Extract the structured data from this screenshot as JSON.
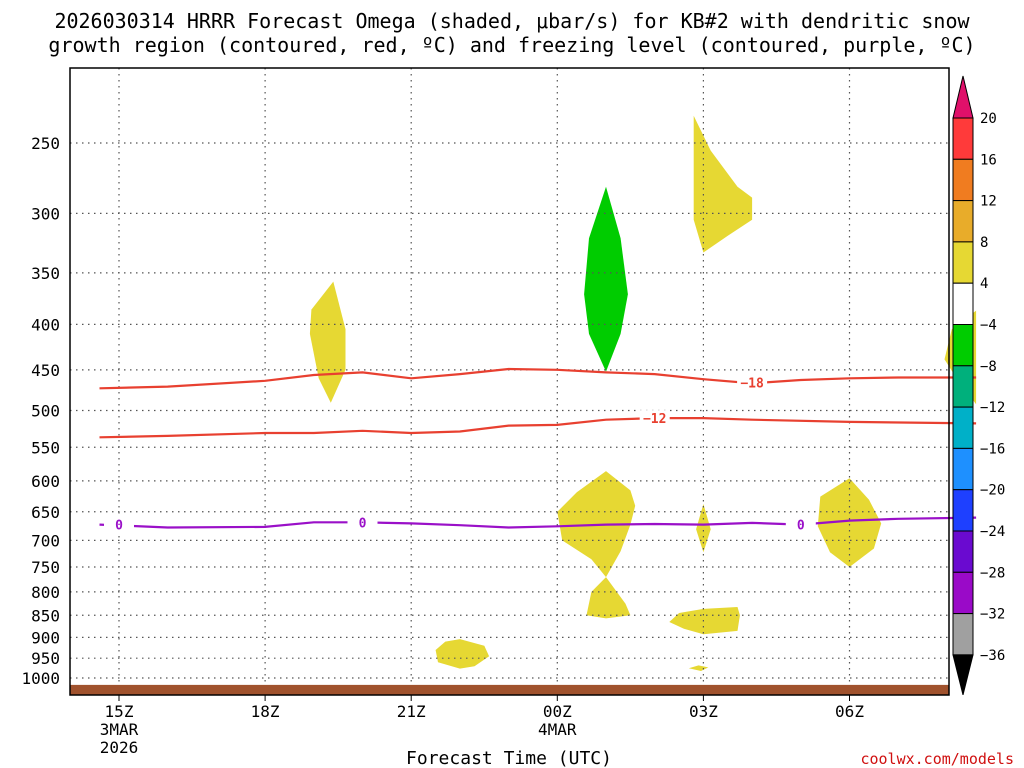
{
  "chart_data": {
    "type": "contour",
    "title_line1": "2026030314 HRRR Forecast Omega (shaded, μbar/s) for KB#2 with dendritic snow",
    "title_line2": "growth region (contoured, red, ºC) and freezing level (contoured, purple, ºC)",
    "xlabel": "Forecast Time (UTC)",
    "credit": "coolwx.com/models",
    "x_range": [
      14.6,
      32.6
    ],
    "x_ticks": [
      {
        "x": 15,
        "label": "15Z",
        "sub1": "3MAR",
        "sub2": "2026"
      },
      {
        "x": 18,
        "label": "18Z",
        "sub1": "",
        "sub2": ""
      },
      {
        "x": 21,
        "label": "21Z",
        "sub1": "",
        "sub2": ""
      },
      {
        "x": 24,
        "label": "00Z",
        "sub1": "4MAR",
        "sub2": ""
      },
      {
        "x": 27,
        "label": "03Z",
        "sub1": "",
        "sub2": ""
      },
      {
        "x": 30,
        "label": "06Z",
        "sub1": "",
        "sub2": ""
      }
    ],
    "y_ticks": [
      250,
      300,
      350,
      400,
      450,
      500,
      550,
      600,
      650,
      700,
      750,
      800,
      850,
      900,
      950,
      1000
    ],
    "y_range": [
      200,
      1030
    ],
    "y_scale": "log",
    "grid": "dotted",
    "colorbar": {
      "levels": [
        "20",
        "16",
        "12",
        "8",
        "4",
        "−4",
        "−8",
        "−12",
        "−16",
        "−20",
        "−24",
        "−28",
        "−32",
        "−36"
      ],
      "colors": [
        "#ff3a3a",
        "#f07c20",
        "#e8ac2a",
        "#e6d833",
        "#ffffff",
        "#00cc00",
        "#00b07c",
        "#00b0c8",
        "#1e90ff",
        "#1e40ff",
        "#6a0ad0",
        "#9a0ac8",
        "#a0a0a0"
      ],
      "top_arrow_color": "#e0106a",
      "bottom_arrow_color": "#000000"
    },
    "contours": [
      {
        "name": "−18",
        "label": "−18",
        "color": "#e84030",
        "points": [
          [
            14.6,
            472
          ],
          [
            16,
            470
          ],
          [
            18,
            463
          ],
          [
            19,
            456
          ],
          [
            20,
            453
          ],
          [
            21,
            460
          ],
          [
            22,
            455
          ],
          [
            23,
            449
          ],
          [
            24,
            450
          ],
          [
            25,
            453
          ],
          [
            26,
            455
          ],
          [
            27,
            461
          ],
          [
            28,
            466
          ],
          [
            29,
            462
          ],
          [
            30,
            460
          ],
          [
            31,
            459
          ],
          [
            32.6,
            459
          ]
        ],
        "label_at": [
          28.0,
          465
        ]
      },
      {
        "name": "−12",
        "label": "−12",
        "color": "#e84030",
        "points": [
          [
            14.6,
            536
          ],
          [
            16,
            534
          ],
          [
            18,
            530
          ],
          [
            19,
            530
          ],
          [
            20,
            527
          ],
          [
            21,
            530
          ],
          [
            22,
            528
          ],
          [
            23,
            520
          ],
          [
            24,
            519
          ],
          [
            25,
            512
          ],
          [
            26,
            510
          ],
          [
            27,
            510
          ],
          [
            28,
            512
          ],
          [
            30,
            515
          ],
          [
            32.6,
            517
          ]
        ],
        "label_at": [
          26.0,
          510
        ]
      },
      {
        "name": "0",
        "label": "0",
        "color": "#9a10c8",
        "points": [
          [
            14.6,
            672
          ],
          [
            16,
            677
          ],
          [
            18,
            676
          ],
          [
            19,
            668
          ],
          [
            20,
            668
          ],
          [
            21,
            670
          ],
          [
            22,
            673
          ],
          [
            23,
            677
          ],
          [
            24,
            675
          ],
          [
            25,
            672
          ],
          [
            26,
            671
          ],
          [
            27,
            672
          ],
          [
            28,
            669
          ],
          [
            29,
            672
          ],
          [
            30,
            665
          ],
          [
            31,
            662
          ],
          [
            32.6,
            660
          ]
        ],
        "label_at": [
          [
            15.0,
            672
          ],
          [
            20.0,
            668
          ],
          [
            29.0,
            672
          ]
        ]
      }
    ],
    "omega_areas": [
      {
        "value_range": "4 to 8",
        "color": "#e6d833",
        "points": [
          [
            19.4,
            358
          ],
          [
            19.65,
            405
          ],
          [
            19.65,
            450
          ],
          [
            19.35,
            490
          ],
          [
            19.1,
            460
          ],
          [
            18.92,
            410
          ],
          [
            18.95,
            385
          ]
        ]
      },
      {
        "value_range": "4 to 8",
        "color": "#e6d833",
        "points": [
          [
            26.8,
            233
          ],
          [
            27.15,
            255
          ],
          [
            27.7,
            280
          ],
          [
            28.0,
            288
          ],
          [
            28.0,
            305
          ],
          [
            27.5,
            318
          ],
          [
            27.0,
            332
          ],
          [
            26.8,
            305
          ]
        ]
      },
      {
        "value_range": "4 to 8",
        "color": "#e6d833",
        "points": [
          [
            32.6,
            386
          ],
          [
            32.6,
            492
          ],
          [
            32.2,
            460
          ],
          [
            31.95,
            438
          ],
          [
            32.1,
            405
          ]
        ]
      },
      {
        "value_range": "4 to 8",
        "color": "#e6d833",
        "points": [
          [
            25.0,
            585
          ],
          [
            25.5,
            615
          ],
          [
            25.6,
            640
          ],
          [
            25.5,
            672
          ],
          [
            25.3,
            720
          ],
          [
            25.0,
            770
          ],
          [
            24.7,
            735
          ],
          [
            24.1,
            700
          ],
          [
            24.0,
            650
          ],
          [
            24.4,
            618
          ]
        ]
      },
      {
        "value_range": "4 to 8",
        "color": "#e6d833",
        "points": [
          [
            25.0,
            770
          ],
          [
            25.4,
            825
          ],
          [
            25.5,
            850
          ],
          [
            25.0,
            857
          ],
          [
            24.6,
            850
          ],
          [
            24.7,
            800
          ]
        ]
      },
      {
        "value_range": "4 to 8",
        "color": "#e6d833",
        "points": [
          [
            27.0,
            637
          ],
          [
            27.15,
            680
          ],
          [
            27.0,
            722
          ],
          [
            26.85,
            680
          ]
        ]
      },
      {
        "value_range": "4 to 8",
        "color": "#e6d833",
        "points": [
          [
            30.0,
            596
          ],
          [
            30.4,
            630
          ],
          [
            30.65,
            670
          ],
          [
            30.5,
            715
          ],
          [
            30.0,
            750
          ],
          [
            29.6,
            722
          ],
          [
            29.35,
            675
          ],
          [
            29.4,
            625
          ]
        ]
      },
      {
        "value_range": "4 to 8",
        "color": "#e6d833",
        "points": [
          [
            27.0,
            836
          ],
          [
            27.7,
            832
          ],
          [
            27.75,
            850
          ],
          [
            27.7,
            885
          ],
          [
            27.0,
            893
          ],
          [
            26.6,
            880
          ],
          [
            26.3,
            865
          ],
          [
            26.5,
            845
          ]
        ]
      },
      {
        "value_range": "4 to 8",
        "color": "#e6d833",
        "points": [
          [
            22.0,
            904
          ],
          [
            22.5,
            920
          ],
          [
            22.6,
            945
          ],
          [
            22.3,
            970
          ],
          [
            22.0,
            976
          ],
          [
            21.55,
            960
          ],
          [
            21.5,
            930
          ],
          [
            21.7,
            910
          ]
        ]
      },
      {
        "value_range": "4 to 8",
        "color": "#e6d833",
        "points": [
          [
            26.9,
            968
          ],
          [
            27.1,
            973
          ],
          [
            26.95,
            982
          ],
          [
            26.7,
            975
          ]
        ]
      },
      {
        "value_range": "-4 to -8",
        "color": "#00cc00",
        "points": [
          [
            25.0,
            280
          ],
          [
            25.3,
            320
          ],
          [
            25.45,
            370
          ],
          [
            25.3,
            410
          ],
          [
            25.0,
            452
          ],
          [
            24.65,
            410
          ],
          [
            24.55,
            370
          ],
          [
            24.65,
            320
          ]
        ]
      }
    ],
    "ground": {
      "pressure_top": 1018,
      "color": "#a0522d"
    }
  }
}
